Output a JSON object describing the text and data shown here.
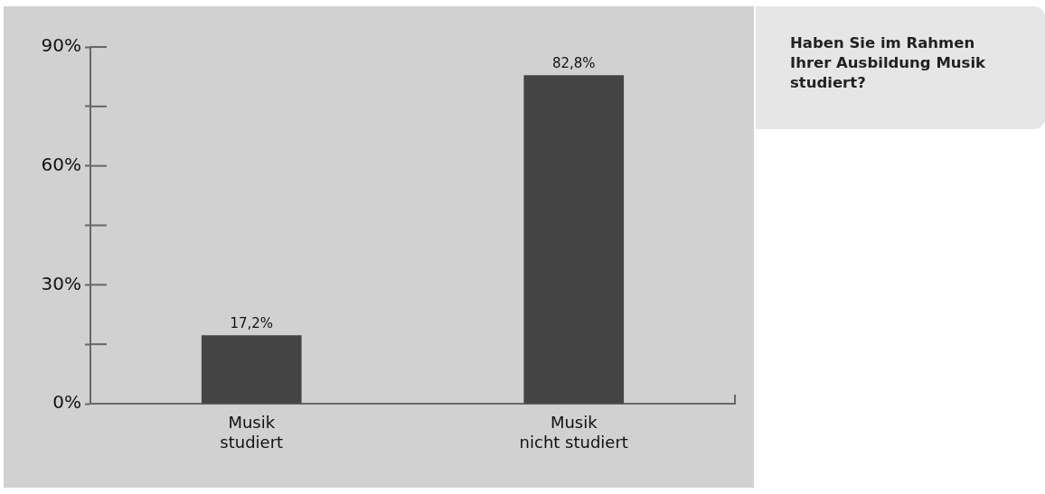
{
  "chart_data": {
    "type": "bar",
    "title": "Haben Sie im Rahmen Ihrer Ausbildung Musik studiert?",
    "categories": [
      "Musik studiert",
      "Musik nicht studiert"
    ],
    "values": [
      17.2,
      82.8
    ],
    "color": "#444444",
    "value_labels": [
      "17,2%",
      "82,8%"
    ],
    "ylim": [
      0,
      90
    ],
    "yticks": [
      {
        "value": 0,
        "label": "0%"
      },
      {
        "value": 15,
        "label": null
      },
      {
        "value": 30,
        "label": "30%"
      },
      {
        "value": 45,
        "label": null
      },
      {
        "value": 60,
        "label": "60%"
      },
      {
        "value": 75,
        "label": null
      },
      {
        "value": 90,
        "label": "90%"
      }
    ],
    "legend": false
  }
}
